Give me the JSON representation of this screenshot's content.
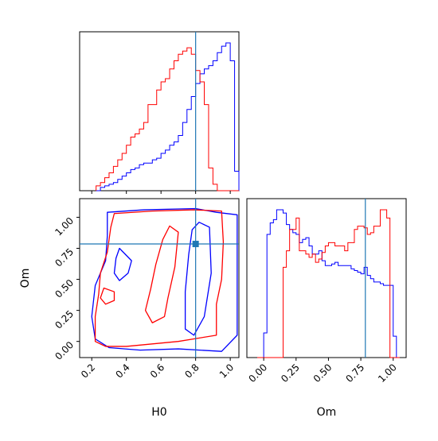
{
  "chart_data": {
    "type": "corner",
    "parameters": [
      "H0",
      "Om"
    ],
    "truths": {
      "H0": 0.8,
      "Om": 0.785
    },
    "colors": {
      "series_a": "#0000ff",
      "series_b": "#ff0000",
      "truth": "#1f77b4"
    },
    "hist_h0": {
      "xlim": [
        0.13,
        1.05
      ],
      "bin_edges": [
        0.225,
        0.25,
        0.275,
        0.3,
        0.325,
        0.35,
        0.375,
        0.4,
        0.425,
        0.45,
        0.475,
        0.5,
        0.525,
        0.55,
        0.575,
        0.6,
        0.625,
        0.65,
        0.675,
        0.7,
        0.725,
        0.75,
        0.775,
        0.8,
        0.825,
        0.85,
        0.875,
        0.9,
        0.925,
        0.95,
        0.975,
        1.0,
        1.025,
        1.05
      ],
      "series": [
        {
          "color_key": "series_a",
          "counts": [
            0,
            2,
            3,
            4,
            5,
            7,
            9,
            11,
            13,
            14,
            16,
            17,
            17,
            19,
            20,
            23,
            25,
            28,
            30,
            34,
            42,
            50,
            58,
            66,
            72,
            75,
            77,
            80,
            85,
            89,
            91,
            80,
            12
          ]
        },
        {
          "color_key": "series_b",
          "counts": [
            3,
            5,
            8,
            11,
            15,
            19,
            23,
            28,
            33,
            35,
            38,
            42,
            53,
            53,
            62,
            67,
            69,
            75,
            80,
            84,
            86,
            88,
            84,
            74,
            67,
            53,
            14,
            4,
            0,
            0,
            0,
            0,
            0
          ]
        }
      ]
    },
    "hist_om": {
      "xlim": [
        -0.13,
        1.1
      ],
      "bin_edges": [
        -0.05,
        -0.025,
        0.0,
        0.025,
        0.05,
        0.075,
        0.1,
        0.125,
        0.15,
        0.175,
        0.2,
        0.225,
        0.25,
        0.275,
        0.3,
        0.325,
        0.35,
        0.375,
        0.4,
        0.425,
        0.45,
        0.475,
        0.5,
        0.525,
        0.55,
        0.575,
        0.6,
        0.625,
        0.65,
        0.675,
        0.7,
        0.725,
        0.75,
        0.775,
        0.8,
        0.825,
        0.85,
        0.875,
        0.9,
        0.925,
        0.95,
        0.975,
        1.0,
        1.025,
        1.05
      ],
      "series": [
        {
          "color_key": "series_a",
          "counts": [
            0,
            0,
            15,
            75,
            82,
            84,
            90,
            90,
            88,
            81,
            78,
            76,
            75,
            70,
            72,
            73,
            68,
            63,
            63,
            65,
            59,
            56,
            56,
            57,
            58,
            56,
            56,
            56,
            56,
            54,
            53,
            52,
            51,
            55,
            50,
            48,
            46,
            46,
            45,
            44,
            44,
            44,
            13,
            0
          ]
        },
        {
          "color_key": "series_b",
          "counts": [
            0,
            0,
            0,
            0,
            0,
            0,
            0,
            0,
            55,
            65,
            78,
            78,
            85,
            65,
            65,
            63,
            61,
            63,
            58,
            60,
            64,
            68,
            70,
            70,
            68,
            68,
            68,
            65,
            70,
            70,
            78,
            80,
            80,
            79,
            75,
            76,
            80,
            80,
            90,
            90,
            85,
            0,
            0,
            0
          ]
        }
      ]
    },
    "contour": {
      "xlim": [
        0.13,
        1.05
      ],
      "ylim": [
        -0.13,
        1.15
      ],
      "series": [
        {
          "color_key": "series_a",
          "outline": [
            [
              0.29,
              1.04
            ],
            [
              0.5,
              1.06
            ],
            [
              0.8,
              1.07
            ],
            [
              0.92,
              1.04
            ],
            [
              1.04,
              1.02
            ],
            [
              1.04,
              0.05
            ],
            [
              0.95,
              -0.08
            ],
            [
              0.7,
              -0.06
            ],
            [
              0.48,
              -0.07
            ],
            [
              0.3,
              -0.05
            ],
            [
              0.22,
              0.02
            ],
            [
              0.2,
              0.2
            ],
            [
              0.22,
              0.45
            ],
            [
              0.28,
              0.65
            ],
            [
              0.29,
              0.85
            ]
          ]
        },
        {
          "color_key": "series_a",
          "outline": [
            [
              0.82,
              0.96
            ],
            [
              0.88,
              0.92
            ],
            [
              0.89,
              0.55
            ],
            [
              0.85,
              0.2
            ],
            [
              0.79,
              0.05
            ],
            [
              0.74,
              0.1
            ],
            [
              0.74,
              0.4
            ],
            [
              0.76,
              0.7
            ],
            [
              0.78,
              0.9
            ]
          ]
        },
        {
          "color_key": "series_a",
          "outline": [
            [
              0.36,
              0.75
            ],
            [
              0.43,
              0.65
            ],
            [
              0.41,
              0.55
            ],
            [
              0.36,
              0.49
            ],
            [
              0.33,
              0.55
            ],
            [
              0.34,
              0.67
            ]
          ]
        },
        {
          "color_key": "series_b",
          "outline": [
            [
              0.33,
              1.03
            ],
            [
              0.55,
              1.05
            ],
            [
              0.79,
              1.06
            ],
            [
              0.95,
              1.05
            ],
            [
              0.96,
              0.8
            ],
            [
              0.95,
              0.5
            ],
            [
              0.92,
              0.3
            ],
            [
              0.92,
              0.05
            ],
            [
              0.7,
              0.0
            ],
            [
              0.55,
              -0.02
            ],
            [
              0.4,
              -0.04
            ],
            [
              0.28,
              -0.04
            ],
            [
              0.22,
              0.0
            ],
            [
              0.22,
              0.2
            ],
            [
              0.24,
              0.38
            ],
            [
              0.25,
              0.55
            ],
            [
              0.29,
              0.72
            ],
            [
              0.31,
              0.92
            ]
          ]
        },
        {
          "color_key": "series_b",
          "outline": [
            [
              0.65,
              0.93
            ],
            [
              0.7,
              0.88
            ],
            [
              0.68,
              0.6
            ],
            [
              0.64,
              0.35
            ],
            [
              0.62,
              0.2
            ],
            [
              0.55,
              0.15
            ],
            [
              0.51,
              0.25
            ],
            [
              0.54,
              0.42
            ],
            [
              0.57,
              0.62
            ],
            [
              0.61,
              0.82
            ]
          ]
        },
        {
          "color_key": "series_b",
          "outline": [
            [
              0.27,
              0.43
            ],
            [
              0.33,
              0.4
            ],
            [
              0.33,
              0.33
            ],
            [
              0.28,
              0.3
            ],
            [
              0.25,
              0.35
            ]
          ]
        }
      ]
    },
    "xlabels": {
      "h0": "H0",
      "om": "Om"
    },
    "ylabel": "Om",
    "ticks": {
      "h0_bottom": [
        0.2,
        0.4,
        0.6,
        0.8,
        1.0
      ],
      "h0_top": [
        0.2,
        0.4,
        0.6,
        0.8,
        1.0
      ],
      "om_left": [
        0.0,
        0.25,
        0.5,
        0.75,
        1.0
      ],
      "om_bottom": [
        0.0,
        0.25,
        0.5,
        0.75,
        1.0
      ]
    },
    "tick_text": {
      "h0": [
        "0.2",
        "0.4",
        "0.6",
        "0.8",
        "1.0"
      ],
      "om": [
        "0.00",
        "0.25",
        "0.50",
        "0.75",
        "1.00"
      ]
    }
  }
}
